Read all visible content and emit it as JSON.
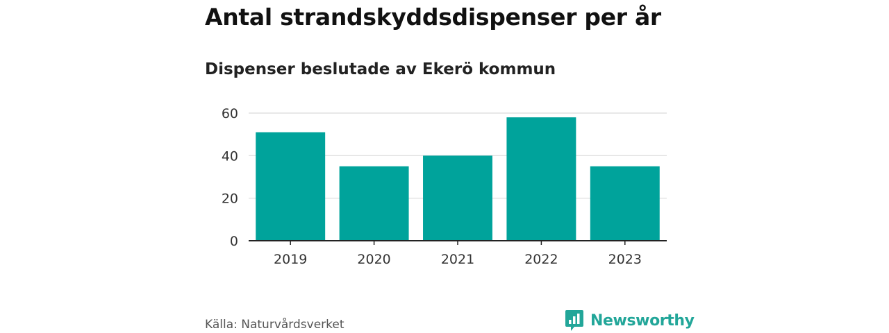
{
  "title": "Antal strandskyddsdispenser per år",
  "subtitle": "Dispenser beslutade av Ekerö kommun",
  "source": "Källa: Naturvårdsverket",
  "brand": {
    "name": "Newsworthy",
    "icon": "newsworthy-logo-icon",
    "color": "#22a699"
  },
  "colors": {
    "bar": "#00a39b",
    "grid": "#d9d9d9",
    "axis": "#222222"
  },
  "chart_data": {
    "type": "bar",
    "categories": [
      "2019",
      "2020",
      "2021",
      "2022",
      "2023"
    ],
    "values": [
      51,
      35,
      40,
      58,
      35
    ],
    "ylim": [
      0,
      60
    ],
    "yticks": [
      "0",
      "20",
      "40",
      "60"
    ],
    "xlabel": "",
    "ylabel": "",
    "grid": true,
    "legend": "none"
  }
}
